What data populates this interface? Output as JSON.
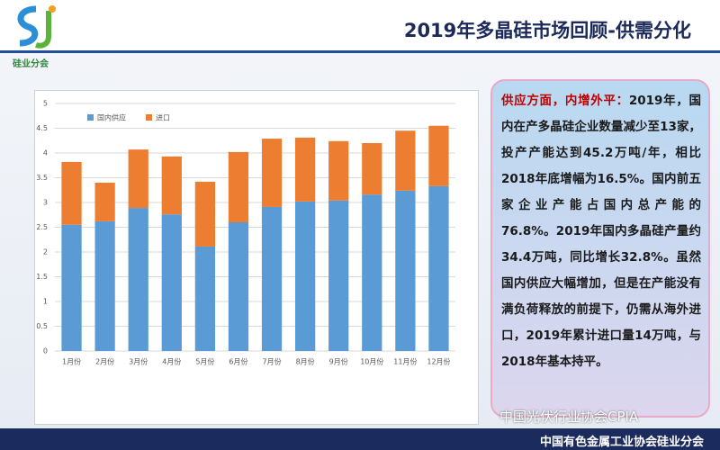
{
  "header": {
    "logo_text": "硅业分会",
    "title": "2019年多晶硅市场回顾-供需分化"
  },
  "chart_data": {
    "type": "stacked_bar",
    "categories": [
      "1月份",
      "2月份",
      "3月份",
      "4月份",
      "5月份",
      "6月份",
      "7月份",
      "8月份",
      "9月份",
      "10月份",
      "11月份",
      "12月份"
    ],
    "series": [
      {
        "name": "国内供应",
        "color": "#5b9bd5",
        "values": [
          2.55,
          2.62,
          2.89,
          2.76,
          2.11,
          2.6,
          2.91,
          3.02,
          3.04,
          3.16,
          3.24,
          3.33
        ]
      },
      {
        "name": "进口",
        "color": "#ed7d31",
        "values": [
          1.27,
          0.78,
          1.18,
          1.17,
          1.31,
          1.42,
          1.38,
          1.29,
          1.2,
          1.04,
          1.21,
          1.22
        ]
      }
    ],
    "ylim": [
      0,
      5
    ],
    "yticks": [
      0,
      0.5,
      1,
      1.5,
      2,
      2.5,
      3,
      3.5,
      4,
      4.5,
      5
    ],
    "grid": true,
    "legend": "top-left"
  },
  "text_panel": {
    "lead": "供应方面，内增外平：",
    "body": "2019年，国内在产多晶硅企业数量减少至13家，投产产能达到45.2万吨/年，相比2018年底增幅为16.5%。国内前五家企业产能占国内总产能的76.8%。2019年国内多晶硅产量约34.4万吨，同比增长32.8%。虽然国内供应大幅增加，但是在产能没有满负荷释放的前提下，仍需从海外进口，2019年累计进口量14万吨，与2018年基本持平。"
  },
  "footer": {
    "watermark": "中国光伏行业协会CPIA",
    "org": "中国有色金属工业协会硅业分会"
  }
}
